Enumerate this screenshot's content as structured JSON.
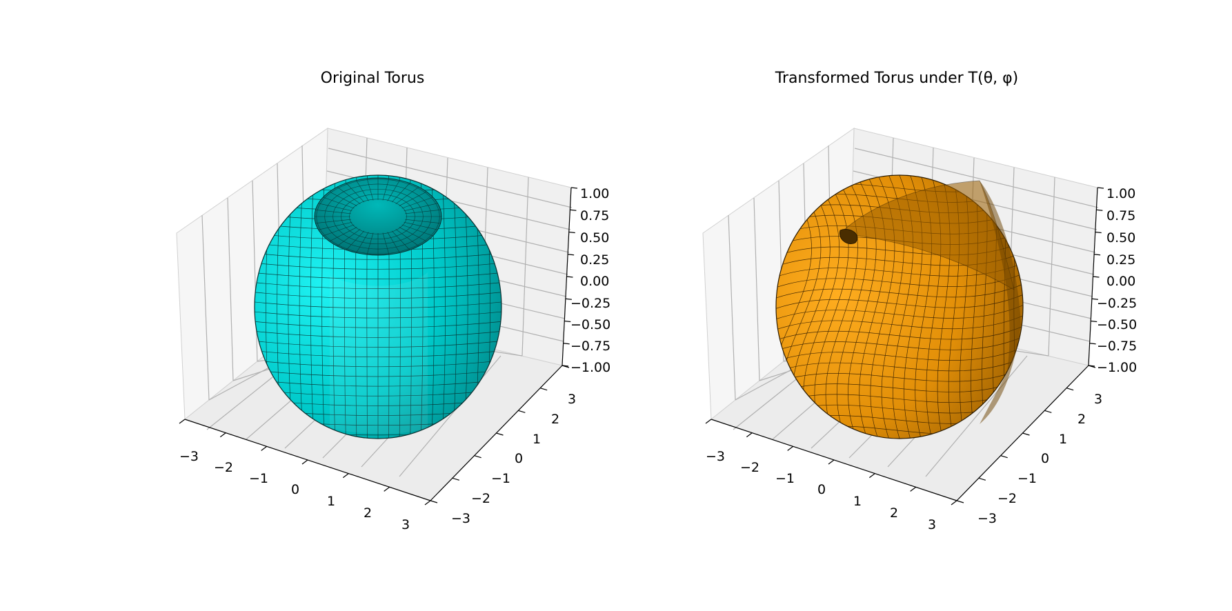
{
  "chart_data": [
    {
      "type": "surface3d",
      "title": "Original Torus",
      "surface_color": "#00e5e5",
      "edge_color": "#1a1a1a",
      "xlim": [
        -3,
        3
      ],
      "ylim": [
        -3,
        3
      ],
      "zlim": [
        -1,
        1
      ],
      "x_ticks": [
        "−3",
        "−2",
        "−1",
        "0",
        "1",
        "2",
        "3"
      ],
      "y_ticks": [
        "−3",
        "−2",
        "−1",
        "0",
        "1",
        "2",
        "3"
      ],
      "z_ticks": [
        "−1.00",
        "−0.75",
        "−0.50",
        "−0.25",
        "0.00",
        "0.25",
        "0.50",
        "0.75",
        "1.00"
      ],
      "grid": true
    },
    {
      "type": "surface3d",
      "title": "Transformed Torus under T(θ, φ)",
      "surface_color": "#ffa500",
      "edge_color": "#1a1a1a",
      "xlim": [
        -3,
        3
      ],
      "ylim": [
        -3,
        3
      ],
      "zlim": [
        -1,
        1
      ],
      "x_ticks": [
        "−3",
        "−2",
        "−1",
        "0",
        "1",
        "2",
        "3"
      ],
      "y_ticks": [
        "−3",
        "−2",
        "−1",
        "0",
        "1",
        "2",
        "3"
      ],
      "z_ticks": [
        "−1.00",
        "−0.75",
        "−0.50",
        "−0.25",
        "0.00",
        "0.25",
        "0.50",
        "0.75",
        "1.00"
      ],
      "grid": true
    }
  ]
}
